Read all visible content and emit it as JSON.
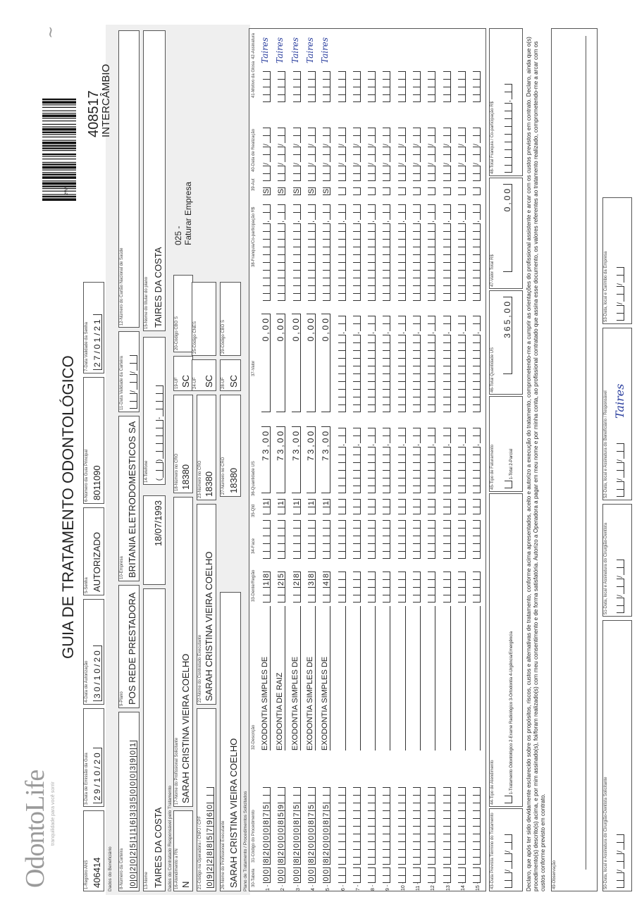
{
  "logo": {
    "brand": "OdontoLife",
    "tagline": "tranquilidade para você sorrir"
  },
  "title": "GUIA DE TRATAMENTO ODONTOLÓGICO",
  "form_number_label": "2ªNº",
  "form_number": "408517",
  "form_type": "INTERCÂMBIO",
  "header": {
    "f1": {
      "label": "1-Registro ANS",
      "value": "406414"
    },
    "f3": {
      "label": "3-Data de Emissão da Guia",
      "value": "29/10/20"
    },
    "f4": {
      "label": "4-Data de Autorização",
      "value": "30/10/20"
    },
    "f5": {
      "label": "5-Senha",
      "value": "AUTORIZADO"
    },
    "f6": {
      "label": "6-Número da Guia Principal",
      "value": "8011090"
    },
    "f7": {
      "label": "7-Data Validade da Senha",
      "value": "27/01/21"
    }
  },
  "beneficiario": {
    "section": "Dados do Beneficiário",
    "f8": {
      "label": "8-Número da Carteira",
      "value": "0020251163350003901"
    },
    "f9": {
      "label": "9-Plano",
      "value": "POS REDE PRESTADORA"
    },
    "f10": {
      "label": "10-Empresa",
      "value": "BRITANIA ELETRODOMESTICOS SA"
    },
    "f11": {
      "label": "11-Data Validade da Carteira",
      "value": "  /  /  "
    },
    "f12": {
      "label": "12-Número do Cartão Nacional de Saúde",
      "value": ""
    },
    "f13": {
      "label": "13-Nome",
      "value": "TAIRES DA COSTA"
    },
    "birth_date": "18/07/1993",
    "f14": {
      "label": "14-Telefone",
      "value": "(  )     -    "
    },
    "f15": {
      "label": "15-Nome do titular do plano",
      "value": "TAIRES DA COSTA"
    }
  },
  "contratado": {
    "section": "Dados do Contratado Responsável pelo Tratamento",
    "f16": {
      "label": "16-Atendimento a RN",
      "value": "N"
    },
    "f17": {
      "label": "17-Nome do Profissional Solicitante",
      "value": "SARAH CRISTINA VIEIRA COELHO"
    },
    "f18": {
      "label": "18-Número no CRO",
      "value": "18380"
    },
    "f19": {
      "label": "19-UF",
      "value": "SC"
    },
    "f20": {
      "label": "20-Código CBO S",
      "value": ""
    },
    "billing_code": "025 -",
    "billing_text": "Faturar Empresa",
    "f21": {
      "label": "21-Código na Operadora / CNPJ / CPF",
      "value": "09228857960"
    },
    "f22": {
      "label": "22-Nome do Contratado Executante",
      "value": "SARAH CRISTINA VIEIRA COELHO"
    },
    "f23": {
      "label": "23-Número no CRO",
      "value": "18380"
    },
    "f24": {
      "label": "24-UF",
      "value": "SC"
    },
    "f25": {
      "label": "25-Código CNES",
      "value": ""
    },
    "f26": {
      "label": "26-Nome do Profissional Executante",
      "value": "SARAH CRISTINA VIEIRA COELHO"
    },
    "f27": {
      "label": "27-Número no CRO",
      "value": "18380"
    },
    "f28": {
      "label": "28-UF",
      "value": "SC"
    },
    "f29": {
      "label": "29-Código CBO S",
      "value": ""
    }
  },
  "plano": {
    "section": "Plano de Tratamento / Procedimentos Solicitados",
    "columns": [
      "30-Tabela",
      "31-Código do Procedimento",
      "32-Descrição",
      "33-Dente/Região",
      "34-Face",
      "35-Qtd",
      "36-Quantidade US",
      "37-Valor",
      "38-Franquia/Co-participação R$",
      "39-Aut",
      "40-Data de Realização",
      "41-Motivo da Glosa",
      "42-Assinatura"
    ],
    "rows": [
      {
        "num": "1 -",
        "tabela": "00",
        "codigo": "82000875",
        "descricao": "EXODONTIA SIMPLES DE",
        "dente": "18",
        "face": "",
        "qtd": "1",
        "qtd_us": "73,00",
        "valor": "0,00",
        "franquia": "",
        "aut": "S",
        "data": "",
        "glosa": "",
        "assinatura": "Taires"
      },
      {
        "num": "2 -",
        "tabela": "00",
        "codigo": "82000859",
        "descricao": "EXODONTIA DE RAIZ",
        "dente": "25",
        "face": "",
        "qtd": "1",
        "qtd_us": "73,00",
        "valor": "0,00",
        "franquia": "",
        "aut": "S",
        "data": "",
        "glosa": "",
        "assinatura": "Taires"
      },
      {
        "num": "3 -",
        "tabela": "00",
        "codigo": "82000875",
        "descricao": "EXODONTIA SIMPLES DE",
        "dente": "28",
        "face": "",
        "qtd": "1",
        "qtd_us": "73,00",
        "valor": "0,00",
        "franquia": "",
        "aut": "S",
        "data": "",
        "glosa": "",
        "assinatura": "Taires"
      },
      {
        "num": "4 -",
        "tabela": "00",
        "codigo": "82000875",
        "descricao": "EXODONTIA SIMPLES DE",
        "dente": "38",
        "face": "",
        "qtd": "1",
        "qtd_us": "73,00",
        "valor": "0,00",
        "franquia": "",
        "aut": "S",
        "data": "",
        "glosa": "",
        "assinatura": "Taires"
      },
      {
        "num": "5 -",
        "tabela": "00",
        "codigo": "82000875",
        "descricao": "EXODONTIA SIMPLES DE",
        "dente": "48",
        "face": "",
        "qtd": "1",
        "qtd_us": "73,00",
        "valor": "0,00",
        "franquia": "",
        "aut": "S",
        "data": "",
        "glosa": "",
        "assinatura": "Taires"
      },
      {
        "num": "6 -"
      },
      {
        "num": "7 -"
      },
      {
        "num": "8 -"
      },
      {
        "num": "9 -"
      },
      {
        "num": "10 -"
      },
      {
        "num": "11 -"
      },
      {
        "num": "12 -"
      },
      {
        "num": "13 -"
      },
      {
        "num": "14 -"
      },
      {
        "num": "15 -"
      }
    ]
  },
  "totais": {
    "f43": {
      "label": "43-Data Prevista Término do Tratamento",
      "value": "  /  /  "
    },
    "f44": {
      "label": "44-Tipo de Atendimento",
      "options": "1-Tratamento Odontológico  2-Exame Radiológico  3-Ortodontia  4-Urgência/Emergência"
    },
    "f45": {
      "label": "45-Tipo de Faturamento",
      "options": "1-Total  2-Parcial"
    },
    "f46": {
      "label": "46-Total Quantidade US",
      "value": "365,00"
    },
    "f47": {
      "label": "47-Valor Total R$",
      "value": "0,00"
    },
    "f48": {
      "label": "48-Total Franquia / Co-participação R$",
      "value": ""
    }
  },
  "declaration": "Declaro, que após ter sido devidamente esclarecido sobre os propósitos, riscos, custos e alternativas de tratamento, conforme acima apresentados, aceito e autorizo a execução do tratamento, comprometendo-me a cumprir as orientações do profissional assistente e arcar com os custos previstos em contrato. Declaro, ainda que o(s) procedimento(s) descrito(s) acima, e por mim assinado(s), foi/foram realizado(s) com meu consentimento e de forma satisfatória. Autorizo a Operadora a pagar em meu nome e por minha conta, ao profissional contratado que assina esse documento, os valores referentes ao tratamento realizado, comprometendo-me a arcar com os custos conforme previsto em contrato.",
  "f49": {
    "label": "49-Observação",
    "value": ""
  },
  "f50": {
    "label": "50-Data, local e Assinatura do Cirurgião-Dentista Solicitante",
    "value": "  /  /  "
  },
  "f51": {
    "label": "51-Data, local e Assinatura do Cirurgião-Dentista",
    "value": "  /  /  "
  },
  "f52": {
    "label": "52-Data, local e Assinatura do Beneficiário / Responsável",
    "value": "  /  /  ",
    "signature": "Taires"
  },
  "f53": {
    "label": "53-Data, local e Carimbo da Empresa",
    "value": "  /  /  "
  },
  "colors": {
    "signature_ink": "#2b3f9e",
    "border": "#555555",
    "band": "#efefef"
  }
}
